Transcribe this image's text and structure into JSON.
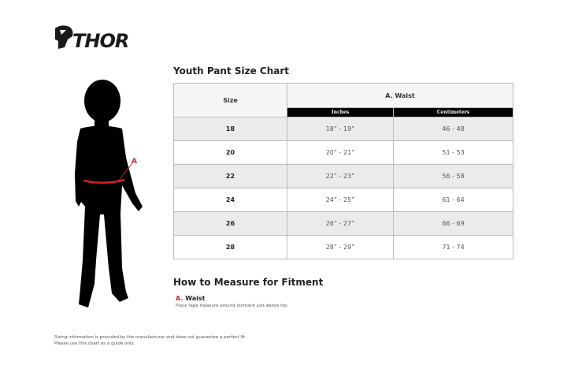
{
  "brand": {
    "logo_text": "THOR"
  },
  "chart": {
    "title": "Youth Pant Size Chart",
    "size_header": "Size",
    "group_header": "A. Waist",
    "sub_headers": [
      "Inches",
      "Centimeters"
    ],
    "rows": [
      {
        "size": "18",
        "inches": "18” - 19”",
        "cm": "46 - 48"
      },
      {
        "size": "20",
        "inches": "20” - 21”",
        "cm": "51 - 53"
      },
      {
        "size": "22",
        "inches": "22” - 23”",
        "cm": "56 - 58"
      },
      {
        "size": "24",
        "inches": "24” - 25”",
        "cm": "61 - 64"
      },
      {
        "size": "26",
        "inches": "26” - 27”",
        "cm": "66 - 69"
      },
      {
        "size": "28",
        "inches": "28” - 29”",
        "cm": "71 - 74"
      }
    ]
  },
  "figure": {
    "marker_label": "A",
    "accent_color": "#d42027"
  },
  "measure": {
    "title": "How to Measure for Fitment",
    "items": [
      {
        "letter": "A.",
        "name": "Waist",
        "description": "Place tape measure around stomach just above hip."
      }
    ]
  },
  "disclaimer": {
    "line1": "Sizing information is provided by the manufacturer and does not guarantee a perfect fit.",
    "line2": "Please use this chart as a guide only."
  }
}
